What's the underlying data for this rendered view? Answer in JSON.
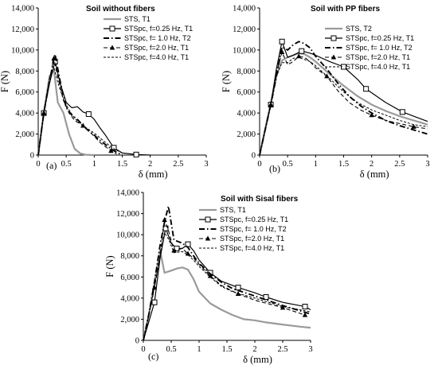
{
  "chart_data": [
    {
      "type": "line",
      "panel_label": "(a)",
      "title": "Soil without fibers",
      "xlabel": "δ (mm)",
      "ylabel": "F (N)",
      "xlim": [
        0,
        3
      ],
      "ylim": [
        0,
        14000
      ],
      "xticks": [
        "0",
        "0.5",
        "1",
        "1.5",
        "2",
        "2.5",
        "3"
      ],
      "yticks": [
        "0",
        "2,000",
        "4,000",
        "6,000",
        "8,000",
        "10,000",
        "12,000",
        "14,000"
      ],
      "grid": false,
      "legend_position": "top-right",
      "series": [
        {
          "name": "STS, T1",
          "style": "gray-solid",
          "color": "#9a9a9a",
          "x": [
            0,
            0.1,
            0.2,
            0.28,
            0.35,
            0.45,
            0.55,
            0.65,
            0.75,
            0.85,
            1.0
          ],
          "y": [
            0,
            4000,
            7500,
            8100,
            5000,
            4000,
            2000,
            600,
            150,
            30,
            0
          ]
        },
        {
          "name": "STSpc, f=0.25 Hz, T1",
          "style": "black-solid-square",
          "color": "#000000",
          "x": [
            0,
            0.1,
            0.2,
            0.3,
            0.4,
            0.5,
            0.6,
            0.7,
            0.8,
            0.9,
            1.0,
            1.1,
            1.2,
            1.35,
            1.5,
            1.75,
            2.0
          ],
          "y": [
            0,
            4000,
            6800,
            8900,
            6700,
            5000,
            4500,
            4600,
            4100,
            3900,
            3400,
            2600,
            1900,
            700,
            200,
            50,
            0
          ],
          "markers": [
            1,
            3,
            9,
            13,
            15
          ]
        },
        {
          "name": "STSpc, f= 1.0 Hz, T2",
          "style": "black-dashdot",
          "color": "#000000",
          "x": [
            0,
            0.1,
            0.2,
            0.3,
            0.4,
            0.5,
            0.6,
            0.7,
            0.8,
            0.9,
            1.0,
            1.1,
            1.2,
            1.3,
            1.4,
            1.5
          ],
          "y": [
            0,
            4000,
            7000,
            9600,
            6800,
            4500,
            3800,
            3400,
            2800,
            2300,
            1900,
            1400,
            1000,
            600,
            250,
            0
          ]
        },
        {
          "name": "STSpc, f=2.0 Hz, T1",
          "style": "black-dash-triangle",
          "color": "#000000",
          "x": [
            0,
            0.1,
            0.2,
            0.28,
            0.35,
            0.45,
            0.55,
            0.65,
            0.8,
            0.9,
            1.0,
            1.1,
            1.2,
            1.3,
            1.4
          ],
          "y": [
            0,
            4000,
            7200,
            9200,
            7400,
            5200,
            4000,
            3300,
            2800,
            2300,
            1800,
            1200,
            800,
            400,
            100
          ],
          "markers": [
            1,
            3,
            8,
            13
          ]
        },
        {
          "name": "STSpc, f=4.0 Hz, T1",
          "style": "black-dashed",
          "color": "#000000",
          "x": [
            0,
            0.1,
            0.2,
            0.28,
            0.35,
            0.45,
            0.55,
            0.65,
            0.8,
            1.0,
            1.2,
            1.35,
            1.5
          ],
          "y": [
            0,
            4000,
            7200,
            8400,
            6900,
            5300,
            4300,
            3500,
            2800,
            2100,
            1200,
            600,
            200
          ]
        }
      ]
    },
    {
      "type": "line",
      "panel_label": "(b)",
      "title": "Soil with PP fibers",
      "xlabel": "δ (mm)",
      "ylabel": "F (N)",
      "xlim": [
        0,
        3
      ],
      "ylim": [
        0,
        14000
      ],
      "xticks": [
        "0",
        "0.5",
        "1",
        "1.5",
        "2",
        "2.5",
        "3"
      ],
      "yticks": [
        "0",
        "2,000",
        "4,000",
        "6,000",
        "8,000",
        "10,000",
        "12,000",
        "14,000"
      ],
      "grid": false,
      "legend_position": "top-right",
      "series": [
        {
          "name": "STS, T2",
          "style": "gray-solid",
          "color": "#9a9a9a",
          "x": [
            0,
            0.1,
            0.2,
            0.3,
            0.4,
            0.5,
            0.6,
            0.7,
            0.8,
            0.9,
            1.0,
            1.25,
            1.5,
            1.75,
            2.0,
            2.25,
            2.5,
            2.75,
            3.0
          ],
          "y": [
            0,
            2500,
            5000,
            7500,
            9000,
            9300,
            9500,
            9700,
            9600,
            9300,
            8900,
            7700,
            6600,
            5600,
            4800,
            4200,
            3700,
            3300,
            2900
          ]
        },
        {
          "name": "STSpc, f=0.25 Hz, T1",
          "style": "black-solid-square",
          "color": "#000000",
          "x": [
            0,
            0.1,
            0.2,
            0.3,
            0.4,
            0.5,
            0.6,
            0.75,
            0.9,
            1.0,
            1.25,
            1.5,
            1.75,
            1.9,
            2.25,
            2.55,
            2.8,
            3.0
          ],
          "y": [
            0,
            2400,
            4800,
            8200,
            10800,
            9300,
            9500,
            9900,
            9700,
            9500,
            8900,
            8400,
            7200,
            6300,
            5000,
            4100,
            3600,
            3200
          ],
          "markers": [
            2,
            4,
            7,
            11,
            13,
            15
          ]
        },
        {
          "name": "STSpc, f= 1.0 Hz, T2",
          "style": "black-dashdot",
          "color": "#000000",
          "x": [
            0,
            0.1,
            0.2,
            0.3,
            0.4,
            0.5,
            0.6,
            0.7,
            0.8,
            0.9,
            1.0,
            1.2,
            1.4,
            1.6,
            1.8,
            2.0,
            2.25,
            2.5,
            2.75,
            3.0
          ],
          "y": [
            0,
            2400,
            4800,
            7500,
            10300,
            10000,
            10500,
            10800,
            10600,
            10200,
            9400,
            8200,
            6800,
            5600,
            4700,
            4000,
            3300,
            2800,
            2400,
            2000
          ]
        },
        {
          "name": "STSpc, f=2.0 Hz, T1",
          "style": "black-dash-triangle",
          "color": "#000000",
          "x": [
            0,
            0.1,
            0.2,
            0.3,
            0.4,
            0.5,
            0.6,
            0.7,
            0.8,
            0.9,
            1.0,
            1.2,
            1.4,
            1.6,
            1.8,
            2.0,
            2.25,
            2.5,
            2.75,
            3.0
          ],
          "y": [
            0,
            2400,
            4800,
            7800,
            9800,
            8600,
            8900,
            9400,
            9300,
            8900,
            8300,
            7500,
            6100,
            5000,
            4300,
            3800,
            3300,
            3000,
            2700,
            2500
          ],
          "markers": [
            2,
            4,
            7,
            11,
            15,
            18
          ]
        },
        {
          "name": "STSpc, f=4.0 Hz, T1",
          "style": "black-dashed",
          "color": "#000000",
          "x": [
            0,
            0.1,
            0.2,
            0.3,
            0.4,
            0.5,
            0.6,
            0.7,
            0.8,
            0.9,
            1.0,
            1.25,
            1.5,
            1.75,
            2.0,
            2.25,
            2.5,
            2.75,
            3.0
          ],
          "y": [
            0,
            2400,
            4800,
            7500,
            8800,
            8800,
            9200,
            9300,
            9100,
            8900,
            8500,
            7300,
            6000,
            5000,
            4300,
            3800,
            3300,
            2900,
            2700
          ]
        }
      ]
    },
    {
      "type": "line",
      "panel_label": "(c)",
      "title": "Soil with Sisal fibers",
      "xlabel": "δ (mm)",
      "ylabel": "F (N)",
      "xlim": [
        0,
        3
      ],
      "ylim": [
        0,
        14000
      ],
      "xticks": [
        "0",
        "0.5",
        "1",
        "1.5",
        "2",
        "2.5",
        "3"
      ],
      "yticks": [
        "0",
        "2,000",
        "4,000",
        "6,000",
        "8,000",
        "10,000",
        "12,000",
        "14,000"
      ],
      "grid": false,
      "legend_position": "top-right",
      "series": [
        {
          "name": "STS, T1",
          "style": "gray-solid",
          "color": "#9a9a9a",
          "x": [
            0,
            0.1,
            0.2,
            0.3,
            0.38,
            0.5,
            0.6,
            0.7,
            0.8,
            0.9,
            1.0,
            1.2,
            1.4,
            1.6,
            1.8,
            2.0,
            2.2,
            2.5,
            2.8,
            3.0
          ],
          "y": [
            0,
            2500,
            5500,
            8500,
            6400,
            6600,
            6800,
            6900,
            6700,
            5800,
            4600,
            3500,
            2900,
            2400,
            2000,
            1900,
            1700,
            1500,
            1300,
            1200
          ]
        },
        {
          "name": "STSpc, f=0.25 Hz, T1",
          "style": "black-solid-square",
          "color": "#000000",
          "x": [
            0,
            0.1,
            0.2,
            0.3,
            0.4,
            0.5,
            0.6,
            0.7,
            0.8,
            0.9,
            1.0,
            1.2,
            1.4,
            1.7,
            2.0,
            2.2,
            2.5,
            2.9,
            3.0
          ],
          "y": [
            0,
            1800,
            3600,
            7800,
            10600,
            9200,
            8700,
            8700,
            9100,
            8500,
            7600,
            6400,
            5600,
            5000,
            4500,
            4100,
            3600,
            3200,
            2900
          ],
          "markers": [
            2,
            4,
            6,
            8,
            11,
            13,
            15,
            17
          ]
        },
        {
          "name": "STSpc, f= 1.0 Hz, T2",
          "style": "black-dashdot",
          "color": "#000000",
          "x": [
            0,
            0.1,
            0.2,
            0.3,
            0.38,
            0.45,
            0.55,
            0.7,
            0.8,
            0.9,
            1.0,
            1.2,
            1.4,
            1.6,
            2.0,
            2.5,
            3.0
          ],
          "y": [
            0,
            2500,
            5500,
            9000,
            11200,
            12700,
            9500,
            9200,
            8800,
            8000,
            7300,
            6300,
            5500,
            4900,
            4200,
            3300,
            2500
          ]
        },
        {
          "name": "STSpc, f=2.0 Hz, T1",
          "style": "black-dash-triangle",
          "color": "#000000",
          "x": [
            0,
            0.1,
            0.2,
            0.3,
            0.38,
            0.45,
            0.55,
            0.7,
            0.8,
            0.9,
            1.0,
            1.2,
            1.4,
            1.7,
            2.0,
            2.5,
            2.9
          ],
          "y": [
            0,
            2400,
            5000,
            8000,
            11400,
            10400,
            8500,
            8700,
            8200,
            7800,
            7200,
            6100,
            5200,
            4400,
            3800,
            3100,
            2400
          ],
          "markers": [
            2,
            4,
            6,
            8,
            11,
            13,
            15,
            16
          ]
        },
        {
          "name": "STSpc, f=4.0 Hz, T1",
          "style": "black-dashed",
          "color": "#000000",
          "x": [
            0,
            0.1,
            0.2,
            0.3,
            0.38,
            0.45,
            0.55,
            0.7,
            0.8,
            0.9,
            1.0,
            1.2,
            1.4,
            1.6,
            2.0,
            2.5,
            3.0
          ],
          "y": [
            0,
            2400,
            5000,
            8000,
            10200,
            9600,
            8300,
            8400,
            8100,
            7600,
            7000,
            6000,
            5100,
            4600,
            4000,
            3200,
            2700
          ]
        }
      ]
    }
  ]
}
